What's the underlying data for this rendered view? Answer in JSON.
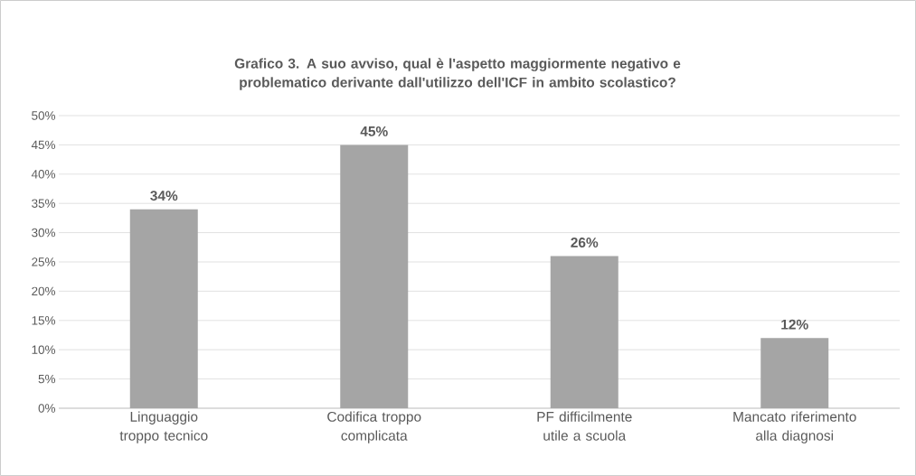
{
  "chart_data": {
    "type": "bar",
    "title": "Grafico 3. A suo avviso, qual è l'aspetto maggiormente negativo e problematico derivante dall'utilizzo dell'ICF in ambito scolastico?",
    "categories": [
      "Linguaggio troppo tecnico",
      "Codifica troppo complicata",
      "PF difficilmente utile a scuola",
      "Mancato riferimento alla diagnosi"
    ],
    "values": [
      34,
      45,
      26,
      12
    ],
    "value_labels": [
      "34%",
      "45%",
      "26%",
      "12%"
    ],
    "color": "#a5a5a5",
    "ylim": [
      0,
      50
    ],
    "yticks": [
      {
        "value": 0,
        "label": "0%"
      },
      {
        "value": 5,
        "label": "5%"
      },
      {
        "value": 10,
        "label": "10%"
      },
      {
        "value": 15,
        "label": "15%"
      },
      {
        "value": 20,
        "label": "20%"
      },
      {
        "value": 25,
        "label": "25%"
      },
      {
        "value": 30,
        "label": "30%"
      },
      {
        "value": 35,
        "label": "35%"
      },
      {
        "value": 40,
        "label": "40%"
      },
      {
        "value": 45,
        "label": "45%"
      },
      {
        "value": 50,
        "label": "50%"
      }
    ],
    "grid": "y"
  }
}
